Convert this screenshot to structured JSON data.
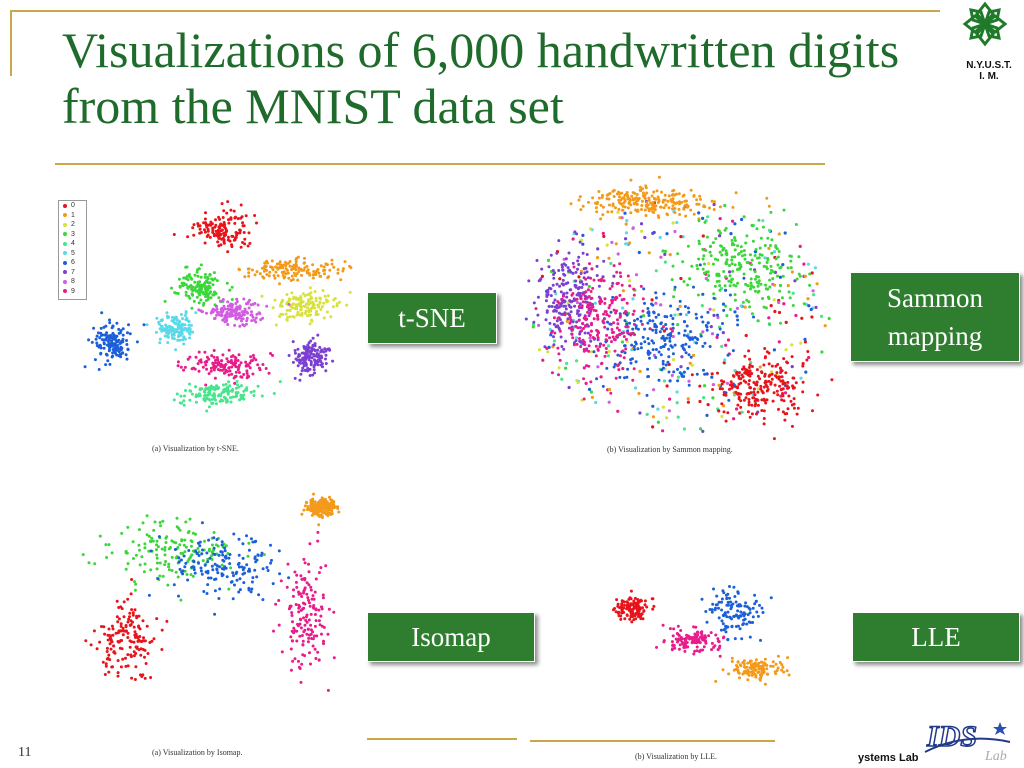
{
  "slide": {
    "title": "Visualizations of 6,000 handwritten digits from the MNIST data set",
    "page_number": "11",
    "logo_text": "N.Y.U.S.T.\nI. M.",
    "footer_lab_text": "ystems Lab",
    "accent_color": "#1f6b2b",
    "label_bg_color": "#2f7d2f",
    "rule_color": "#c8a84a"
  },
  "labels": {
    "tsne": "t-SNE",
    "sammon": "Sammon mapping",
    "isomap": "Isomap",
    "lle": "LLE"
  },
  "captions": {
    "tsne": "(a) Visualization by t-SNE.",
    "sammon": "(b) Visualization by Sammon mapping.",
    "isomap": "(a) Visualization by Isomap.",
    "lle": "(b) Visualization by LLE."
  },
  "legend": {
    "entries": [
      "0",
      "1",
      "2",
      "3",
      "4",
      "5",
      "6",
      "7",
      "8",
      "9"
    ],
    "colors": [
      "#e8141b",
      "#f39a1a",
      "#d8e23a",
      "#3bd63a",
      "#47e58c",
      "#5ad9e8",
      "#1c5fd8",
      "#7b3fd1",
      "#d25de0",
      "#e81c8a"
    ]
  },
  "chart_data": [
    {
      "type": "scatter",
      "title": "(a) Visualization by t-SNE.",
      "series_colors_by_digit": [
        "#e8141b",
        "#f39a1a",
        "#d8e23a",
        "#3bd63a",
        "#47e58c",
        "#5ad9e8",
        "#1c5fd8",
        "#7b3fd1",
        "#d25de0",
        "#e81c8a"
      ],
      "clusters": [
        {
          "digit": "0",
          "x": 0.55,
          "y": 0.15,
          "spread": [
            0.09,
            0.08
          ]
        },
        {
          "digit": "1",
          "x": 0.82,
          "y": 0.31,
          "spread": [
            0.18,
            0.04
          ]
        },
        {
          "digit": "2",
          "x": 0.86,
          "y": 0.46,
          "spread": [
            0.1,
            0.06
          ]
        },
        {
          "digit": "3",
          "x": 0.47,
          "y": 0.39,
          "spread": [
            0.08,
            0.08
          ]
        },
        {
          "digit": "4",
          "x": 0.54,
          "y": 0.83,
          "spread": [
            0.14,
            0.05
          ]
        },
        {
          "digit": "5",
          "x": 0.38,
          "y": 0.55,
          "spread": [
            0.06,
            0.06
          ]
        },
        {
          "digit": "6",
          "x": 0.15,
          "y": 0.61,
          "spread": [
            0.06,
            0.08
          ]
        },
        {
          "digit": "7",
          "x": 0.88,
          "y": 0.68,
          "spread": [
            0.06,
            0.07
          ]
        },
        {
          "digit": "8",
          "x": 0.6,
          "y": 0.49,
          "spread": [
            0.1,
            0.05
          ]
        },
        {
          "digit": "9",
          "x": 0.57,
          "y": 0.71,
          "spread": [
            0.13,
            0.05
          ]
        }
      ]
    },
    {
      "type": "scatter",
      "title": "(b) Visualization by Sammon mapping.",
      "series_colors_by_digit": [
        "#e8141b",
        "#f39a1a",
        "#d8e23a",
        "#3bd63a",
        "#47e58c",
        "#5ad9e8",
        "#1c5fd8",
        "#7b3fd1",
        "#d25de0",
        "#e81c8a"
      ],
      "clusters": [
        {
          "digit": "0",
          "x": 0.75,
          "y": 0.78,
          "spread": [
            0.15,
            0.12
          ]
        },
        {
          "digit": "1",
          "x": 0.4,
          "y": 0.1,
          "spread": [
            0.2,
            0.05
          ]
        },
        {
          "digit": "3",
          "x": 0.7,
          "y": 0.35,
          "spread": [
            0.18,
            0.15
          ]
        },
        {
          "digit": "6",
          "x": 0.45,
          "y": 0.6,
          "spread": [
            0.2,
            0.18
          ]
        },
        {
          "digit": "7",
          "x": 0.15,
          "y": 0.45,
          "spread": [
            0.1,
            0.2
          ]
        },
        {
          "digit": "9",
          "x": 0.25,
          "y": 0.55,
          "spread": [
            0.15,
            0.2
          ]
        }
      ]
    },
    {
      "type": "scatter",
      "title": "(a) Visualization by Isomap.",
      "series_colors_by_digit": [
        "#e8141b",
        "#f39a1a",
        "#d8e23a",
        "#3bd63a",
        "#47e58c",
        "#5ad9e8",
        "#1c5fd8",
        "#7b3fd1",
        "#d25de0",
        "#e81c8a"
      ],
      "clusters": [
        {
          "digit": "0",
          "x": 0.25,
          "y": 0.6,
          "spread": [
            0.1,
            0.15
          ]
        },
        {
          "digit": "1",
          "x": 0.88,
          "y": 0.07,
          "spread": [
            0.05,
            0.04
          ]
        },
        {
          "digit": "3",
          "x": 0.4,
          "y": 0.25,
          "spread": [
            0.2,
            0.12
          ]
        },
        {
          "digit": "6",
          "x": 0.55,
          "y": 0.3,
          "spread": [
            0.18,
            0.12
          ]
        },
        {
          "digit": "9",
          "x": 0.82,
          "y": 0.5,
          "spread": [
            0.07,
            0.22
          ]
        }
      ]
    },
    {
      "type": "scatter",
      "title": "(b) Visualization by LLE.",
      "series_colors_by_digit": [
        "#e8141b",
        "#f39a1a",
        "#d8e23a",
        "#3bd63a",
        "#47e58c",
        "#5ad9e8",
        "#1c5fd8",
        "#7b3fd1",
        "#d25de0",
        "#e81c8a"
      ],
      "clusters": [
        {
          "digit": "0",
          "x": 0.25,
          "y": 0.4,
          "spread": [
            0.06,
            0.06
          ]
        },
        {
          "digit": "1",
          "x": 0.68,
          "y": 0.68,
          "spread": [
            0.1,
            0.05
          ]
        },
        {
          "digit": "6",
          "x": 0.6,
          "y": 0.42,
          "spread": [
            0.1,
            0.12
          ]
        },
        {
          "digit": "9",
          "x": 0.45,
          "y": 0.55,
          "spread": [
            0.1,
            0.06
          ]
        }
      ]
    }
  ]
}
